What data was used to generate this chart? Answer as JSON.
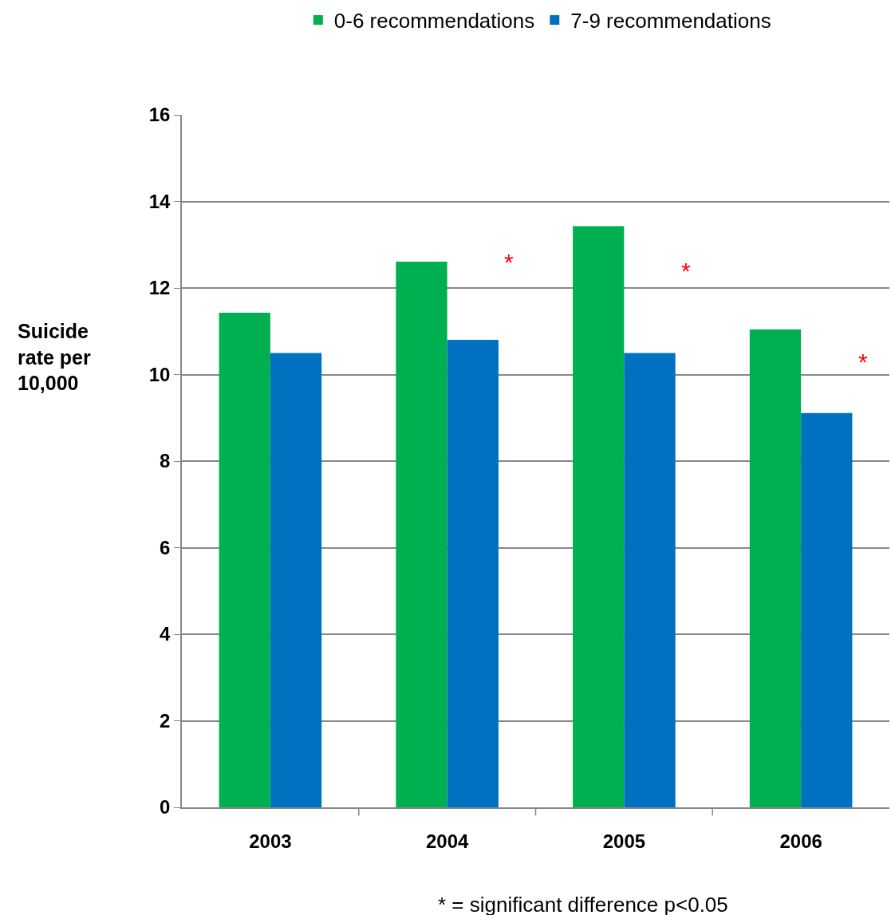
{
  "chart_data": {
    "type": "bar",
    "ylabel": "Suicide rate per 10,000",
    "categories": [
      "2003",
      "2004",
      "2005",
      "2006"
    ],
    "series": [
      {
        "name": "0-6 recommendations",
        "color": "#00b050",
        "values": [
          11.43,
          12.61,
          13.43,
          11.04
        ]
      },
      {
        "name": "7-9 recommendations",
        "color": "#0070c0",
        "values": [
          10.5,
          10.8,
          10.5,
          9.11
        ]
      }
    ],
    "ylim": [
      0,
      16
    ],
    "yticks": [
      0,
      2,
      4,
      6,
      8,
      10,
      12,
      14,
      16
    ],
    "grid": "y",
    "legend": "top",
    "annotations": [
      {
        "text": "*",
        "x": "2004",
        "y": 12.6
      },
      {
        "text": "*",
        "x": "2005",
        "y": 12.4
      },
      {
        "text": "*",
        "x": "2006",
        "y": 10.3
      },
      "* = significant difference p<0.05"
    ]
  }
}
